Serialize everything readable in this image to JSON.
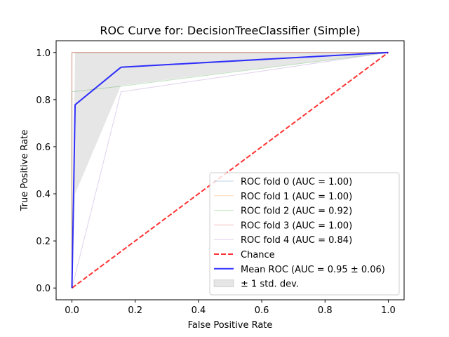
{
  "chart_data": {
    "type": "line",
    "title": "ROC Curve for: DecisionTreeClassifier (Simple)",
    "xlabel": "False Positive Rate",
    "ylabel": "True Positive Rate",
    "xlim": [
      -0.05,
      1.05
    ],
    "ylim": [
      -0.05,
      1.05
    ],
    "xticks": [
      0.0,
      0.2,
      0.4,
      0.6,
      0.8,
      1.0
    ],
    "yticks": [
      0.0,
      0.2,
      0.4,
      0.6,
      0.8,
      1.0
    ],
    "xtick_labels": [
      "0.0",
      "0.2",
      "0.4",
      "0.6",
      "0.8",
      "1.0"
    ],
    "ytick_labels": [
      "0.0",
      "0.2",
      "0.4",
      "0.6",
      "0.8",
      "1.0"
    ],
    "grid": false,
    "legend_position": "lower-right",
    "series": [
      {
        "name": "ROC fold 0 (AUC = 1.00)",
        "color": "#1f77b4",
        "alpha": 0.3,
        "width": 1,
        "style": "solid",
        "x": [
          0.0,
          0.0,
          1.0
        ],
        "y": [
          0.0,
          1.0,
          1.0
        ]
      },
      {
        "name": "ROC fold 1 (AUC = 1.00)",
        "color": "#ff7f0e",
        "alpha": 0.3,
        "width": 1,
        "style": "solid",
        "x": [
          0.0,
          0.0,
          1.0
        ],
        "y": [
          0.0,
          1.0,
          1.0
        ]
      },
      {
        "name": "ROC fold 2 (AUC = 0.92)",
        "color": "#2ca02c",
        "alpha": 0.3,
        "width": 1,
        "style": "solid",
        "x": [
          0.0,
          0.0,
          0.155,
          1.0
        ],
        "y": [
          0.0,
          0.833,
          0.857,
          1.0
        ]
      },
      {
        "name": "ROC fold 3 (AUC = 1.00)",
        "color": "#d62728",
        "alpha": 0.3,
        "width": 1,
        "style": "solid",
        "x": [
          0.0,
          0.0,
          1.0
        ],
        "y": [
          0.0,
          1.0,
          1.0
        ]
      },
      {
        "name": "ROC fold 4 (AUC = 0.84)",
        "color": "#9467bd",
        "alpha": 0.3,
        "width": 1,
        "style": "solid",
        "x": [
          0.0,
          0.155,
          1.0
        ],
        "y": [
          0.0,
          0.833,
          1.0
        ]
      },
      {
        "name": "Chance",
        "color": "#ff0000",
        "alpha": 0.8,
        "width": 2,
        "style": "dashed",
        "x": [
          0.0,
          1.0
        ],
        "y": [
          0.0,
          1.0
        ]
      },
      {
        "name": "Mean ROC (AUC = 0.95 ± 0.06)",
        "color": "#0000ff",
        "alpha": 0.8,
        "width": 2,
        "style": "solid",
        "x": [
          0.0,
          0.01,
          0.15,
          0.155,
          0.16,
          1.0
        ],
        "y": [
          0.0,
          0.778,
          0.932,
          0.937,
          0.938,
          1.0
        ]
      }
    ],
    "band": {
      "name": "± 1 std. dev.",
      "color": "#808080",
      "alpha": 0.2,
      "x": [
        0.0,
        0.01,
        0.155,
        1.0
      ],
      "lower": [
        0.0,
        0.4,
        0.86,
        1.0
      ],
      "upper": [
        0.0,
        1.0,
        1.0,
        1.0
      ]
    }
  }
}
